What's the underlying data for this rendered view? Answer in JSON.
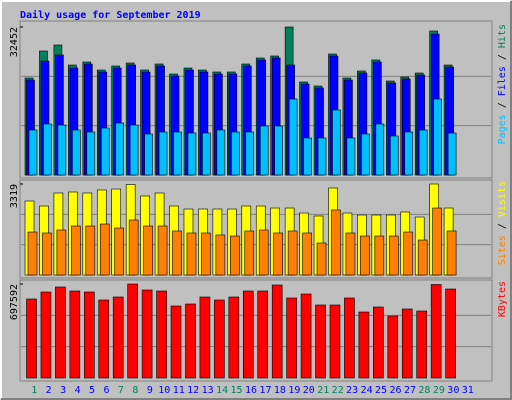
{
  "chart_data": [
    {
      "type": "bar",
      "title": "Daily usage for September 2019",
      "title_color": "#0000ff",
      "ylim": [
        0,
        32452
      ],
      "yticks": [
        32452
      ],
      "legend_separator": " / ",
      "series": [
        {
          "name": "Hits",
          "color": "#00805c",
          "values": [
            21270,
            27190,
            28505,
            24120,
            24777,
            23023,
            23900,
            24558,
            23023,
            24339,
            22146,
            23462,
            23023,
            22585,
            22585,
            24339,
            25655,
            26093,
            32452,
            20392,
            19515,
            26532,
            21270,
            22804,
            25216,
            20611,
            21488,
            22365,
            31575,
            24120,
            null
          ]
        },
        {
          "name": "Files",
          "color": "#0000ff",
          "values": [
            20830,
            24995,
            26312,
            23462,
            24339,
            22585,
            23462,
            24120,
            22585,
            23900,
            21708,
            23023,
            22585,
            22146,
            22146,
            23900,
            25216,
            25655,
            24120,
            19953,
            19076,
            26093,
            20830,
            22365,
            24777,
            20173,
            21050,
            21927,
            30917,
            23681,
            null
          ]
        },
        {
          "name": "Pages",
          "color": "#00c0ff",
          "values": [
            9867,
            11183,
            10964,
            9867,
            9428,
            10306,
            11402,
            10964,
            8990,
            9428,
            9428,
            9209,
            9209,
            9867,
            9428,
            9428,
            10745,
            10745,
            16664,
            8113,
            8113,
            14253,
            8113,
            8990,
            11183,
            8552,
            9428,
            9867,
            16664,
            9209,
            null
          ]
        }
      ]
    },
    {
      "type": "bar",
      "ylim": [
        0,
        3319
      ],
      "yticks": [
        3319
      ],
      "legend_separator": " / ",
      "series": [
        {
          "name": "Visits",
          "color": "#ffff00",
          "values": [
            2699,
            2516,
            2991,
            3027,
            2991,
            3100,
            3136,
            3300,
            2881,
            2991,
            2516,
            2407,
            2407,
            2407,
            2407,
            2516,
            2516,
            2443,
            2443,
            2261,
            2152,
            3173,
            2261,
            2188,
            2188,
            2188,
            2298,
            2115,
            3319,
            2443,
            null
          ]
        },
        {
          "name": "Sites",
          "color": "#ff8000",
          "values": [
            1568,
            1532,
            1641,
            1787,
            1787,
            1860,
            1714,
            2006,
            1787,
            1787,
            1605,
            1532,
            1532,
            1459,
            1422,
            1605,
            1641,
            1532,
            1605,
            1532,
            1167,
            2371,
            1532,
            1422,
            1422,
            1422,
            1568,
            1276,
            2443,
            1605,
            null
          ]
        }
      ]
    },
    {
      "type": "bar",
      "ylim": [
        0,
        697592
      ],
      "yticks": [
        697592
      ],
      "categories": [
        "1",
        "2",
        "3",
        "4",
        "5",
        "6",
        "7",
        "8",
        "9",
        "10",
        "11",
        "12",
        "13",
        "14",
        "15",
        "16",
        "17",
        "18",
        "19",
        "20",
        "21",
        "22",
        "23",
        "24",
        "25",
        "26",
        "27",
        "28",
        "29",
        "30",
        "31"
      ],
      "category_colors": [
        "#00805c",
        "#0000ff",
        "#0000ff",
        "#0000ff",
        "#0000ff",
        "#0000ff",
        "#00805c",
        "#00805c",
        "#0000ff",
        "#0000ff",
        "#0000ff",
        "#0000ff",
        "#0000ff",
        "#00805c",
        "#00805c",
        "#0000ff",
        "#0000ff",
        "#0000ff",
        "#0000ff",
        "#0000ff",
        "#00805c",
        "#00805c",
        "#0000ff",
        "#0000ff",
        "#0000ff",
        "#0000ff",
        "#0000ff",
        "#00805c",
        "#00805c",
        "#0000ff",
        "#0000ff"
      ],
      "series": [
        {
          "name": "KBytes",
          "color": "#ff0000",
          "values": [
            586259,
            638206,
            675311,
            645627,
            638206,
            578838,
            601101,
            697592,
            653048,
            645627,
            534312,
            549154,
            601101,
            578838,
            601101,
            645627,
            645627,
            690153,
            593680,
            623364,
            541733,
            541733,
            593680,
            489786,
            526891,
            460102,
            512049,
            497207,
            694000,
            660469,
            null
          ]
        }
      ]
    }
  ]
}
